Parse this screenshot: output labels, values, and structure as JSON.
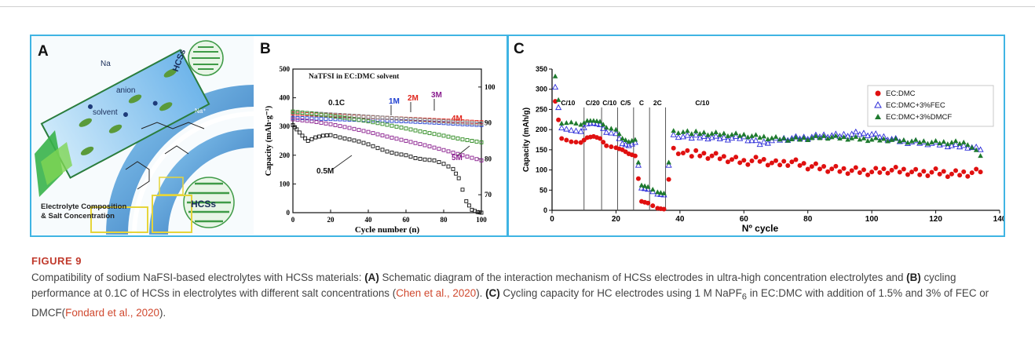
{
  "figure": {
    "label": "FIGURE 9",
    "panels": {
      "a": {
        "letter": "A",
        "labels": {
          "na": "Na",
          "anion": "anion",
          "solvent": "solvent",
          "hcss_top": "HCSs",
          "hcss_bottom": "HCSs",
          "na_plus": "Na⁺",
          "electrolyte_line1": "Electrolyte Composition",
          "electrolyte_line2": "& Salt Concentration"
        }
      },
      "b": {
        "letter": "B",
        "inner_title": "NaTFSI in EC:DMC solvent",
        "annotations": {
          "rate": "0.1C",
          "m1": "1M",
          "m2": "2M",
          "m3": "3M",
          "m4": "4M",
          "m5": "5M",
          "m05": "0.5M"
        }
      },
      "c": {
        "letter": "C",
        "rate_labels": [
          "C/10",
          "C/20",
          "C/10",
          "C/5",
          "C",
          "2C",
          "C/10"
        ]
      }
    }
  },
  "chart_data": [
    {
      "type": "scatter",
      "panel": "B",
      "title": "NaTFSI in EC:DMC solvent",
      "xlabel": "Cycle number (n)",
      "ylabel": "Capacity (mAh·g⁻¹)",
      "xlim": [
        0,
        100
      ],
      "ylim": [
        0,
        500
      ],
      "xticks": [
        0,
        20,
        40,
        60,
        80,
        100
      ],
      "yticks": [
        0,
        100,
        200,
        300,
        400,
        500
      ],
      "y2ticks": [
        70,
        80,
        90,
        100
      ],
      "series": [
        {
          "name": "1M",
          "color": "#1f3fd1",
          "x": [
            0,
            10,
            20,
            30,
            40,
            50,
            60,
            70,
            80,
            90,
            100
          ],
          "y": [
            330,
            328,
            326,
            324,
            322,
            320,
            318,
            315,
            312,
            308,
            305
          ]
        },
        {
          "name": "2M",
          "color": "#e0241b",
          "x": [
            0,
            10,
            20,
            30,
            40,
            50,
            60,
            70,
            80,
            90,
            100
          ],
          "y": [
            345,
            342,
            339,
            336,
            333,
            330,
            327,
            324,
            321,
            318,
            315
          ]
        },
        {
          "name": "3M",
          "color": "#7a7a7a",
          "x": [
            0,
            10,
            20,
            30,
            40,
            50,
            60,
            70,
            80,
            90,
            100
          ],
          "y": [
            350,
            346,
            342,
            338,
            334,
            330,
            326,
            322,
            318,
            314,
            310
          ]
        },
        {
          "name": "4M",
          "color": "#2c8a1e",
          "x": [
            0,
            10,
            20,
            30,
            40,
            50,
            60,
            70,
            80,
            90,
            100
          ],
          "y": [
            352,
            345,
            337,
            328,
            318,
            306,
            293,
            280,
            268,
            255,
            245
          ]
        },
        {
          "name": "5M",
          "color": "#8a1f8f",
          "x": [
            0,
            10,
            20,
            30,
            40,
            50,
            60,
            70,
            80,
            90,
            100
          ],
          "y": [
            325,
            318,
            308,
            295,
            281,
            265,
            250,
            235,
            218,
            200,
            182
          ]
        },
        {
          "name": "0.5M",
          "color": "#111111",
          "x": [
            0,
            2,
            5,
            8,
            12,
            16,
            20,
            25,
            30,
            35,
            40,
            45,
            50,
            55,
            60,
            65,
            70,
            75,
            80,
            85,
            88,
            92,
            95,
            98,
            100
          ],
          "y": [
            305,
            290,
            268,
            250,
            262,
            268,
            270,
            262,
            255,
            248,
            238,
            225,
            213,
            205,
            200,
            190,
            185,
            182,
            170,
            152,
            120,
            40,
            10,
            2,
            0
          ]
        }
      ]
    },
    {
      "type": "scatter",
      "panel": "C",
      "xlabel": "Nº cycle",
      "ylabel": "Capacity (mAh/g)",
      "xlim": [
        0,
        140
      ],
      "ylim": [
        0,
        350
      ],
      "xticks": [
        0,
        20,
        40,
        60,
        80,
        100,
        120,
        140
      ],
      "yticks": [
        0,
        50,
        100,
        150,
        200,
        250,
        300,
        350
      ],
      "legend": "top-right",
      "series": [
        {
          "name": "EC:DMC",
          "color": "#e01010",
          "marker": "circle",
          "x": [
            1,
            3,
            6,
            9,
            11,
            13,
            15,
            17,
            20,
            22,
            24,
            26,
            28,
            30,
            33,
            35,
            38,
            41,
            45,
            50,
            55,
            60,
            65,
            70,
            75,
            80,
            85,
            90,
            95,
            100,
            105,
            110,
            115,
            120,
            125,
            130,
            134
          ],
          "y": [
            270,
            178,
            170,
            168,
            180,
            183,
            178,
            160,
            155,
            150,
            140,
            135,
            22,
            18,
            5,
            3,
            150,
            146,
            140,
            135,
            128,
            120,
            125,
            115,
            120,
            110,
            105,
            100,
            98,
            95,
            100,
            98,
            92,
            95,
            90,
            92,
            95
          ]
        },
        {
          "name": "EC:DMC+3%FEC",
          "color": "#2b2bd8",
          "marker": "triangle-open",
          "x": [
            1,
            3,
            6,
            9,
            11,
            13,
            15,
            17,
            20,
            22,
            24,
            26,
            28,
            30,
            33,
            35,
            38,
            41,
            45,
            50,
            55,
            60,
            65,
            70,
            75,
            80,
            85,
            90,
            95,
            100,
            105,
            110,
            115,
            120,
            125,
            130,
            134
          ],
          "y": [
            305,
            204,
            198,
            195,
            214,
            216,
            212,
            193,
            190,
            165,
            160,
            168,
            55,
            52,
            40,
            38,
            185,
            184,
            182,
            180,
            178,
            180,
            165,
            175,
            178,
            180,
            185,
            185,
            190,
            188,
            178,
            170,
            168,
            165,
            160,
            158,
            150
          ]
        },
        {
          "name": "EC:DMC+3%DMCF",
          "color": "#1e7a2e",
          "marker": "triangle",
          "x": [
            1,
            3,
            6,
            9,
            11,
            13,
            15,
            17,
            20,
            22,
            24,
            26,
            28,
            30,
            33,
            35,
            38,
            41,
            45,
            50,
            55,
            60,
            65,
            70,
            75,
            80,
            85,
            90,
            95,
            100,
            105,
            110,
            115,
            120,
            125,
            130,
            134
          ],
          "y": [
            332,
            215,
            218,
            212,
            222,
            222,
            220,
            205,
            200,
            178,
            170,
            175,
            62,
            58,
            45,
            42,
            195,
            196,
            192,
            190,
            188,
            186,
            182,
            178,
            176,
            178,
            182,
            180,
            178,
            175,
            175,
            172,
            170,
            168,
            168,
            166,
            135
          ]
        }
      ]
    }
  ],
  "caption": {
    "p1": "Compatibility of sodium NaFSI-based electrolytes with HCSs materials: ",
    "a_ref": "(A)",
    "p2": " Schematic diagram of the interaction mechanism of HCSs electrodes in ultra-high concentration electrolytes and ",
    "b_ref": "(B)",
    "p3": " cycling performance at 0.1C of HCSs in electrolytes with different salt concentrations (",
    "cite1": "Chen et al., 2020",
    "p4": "). ",
    "c_ref": "(C)",
    "p5": " Cycling capacity for HC electrodes using 1 M NaPF",
    "sub6": "6",
    "p6": " in EC:DMC with addition of 1.5% and 3% of FEC or DMCF(",
    "cite2": "Fondard et al., 2020",
    "p7": ")."
  }
}
